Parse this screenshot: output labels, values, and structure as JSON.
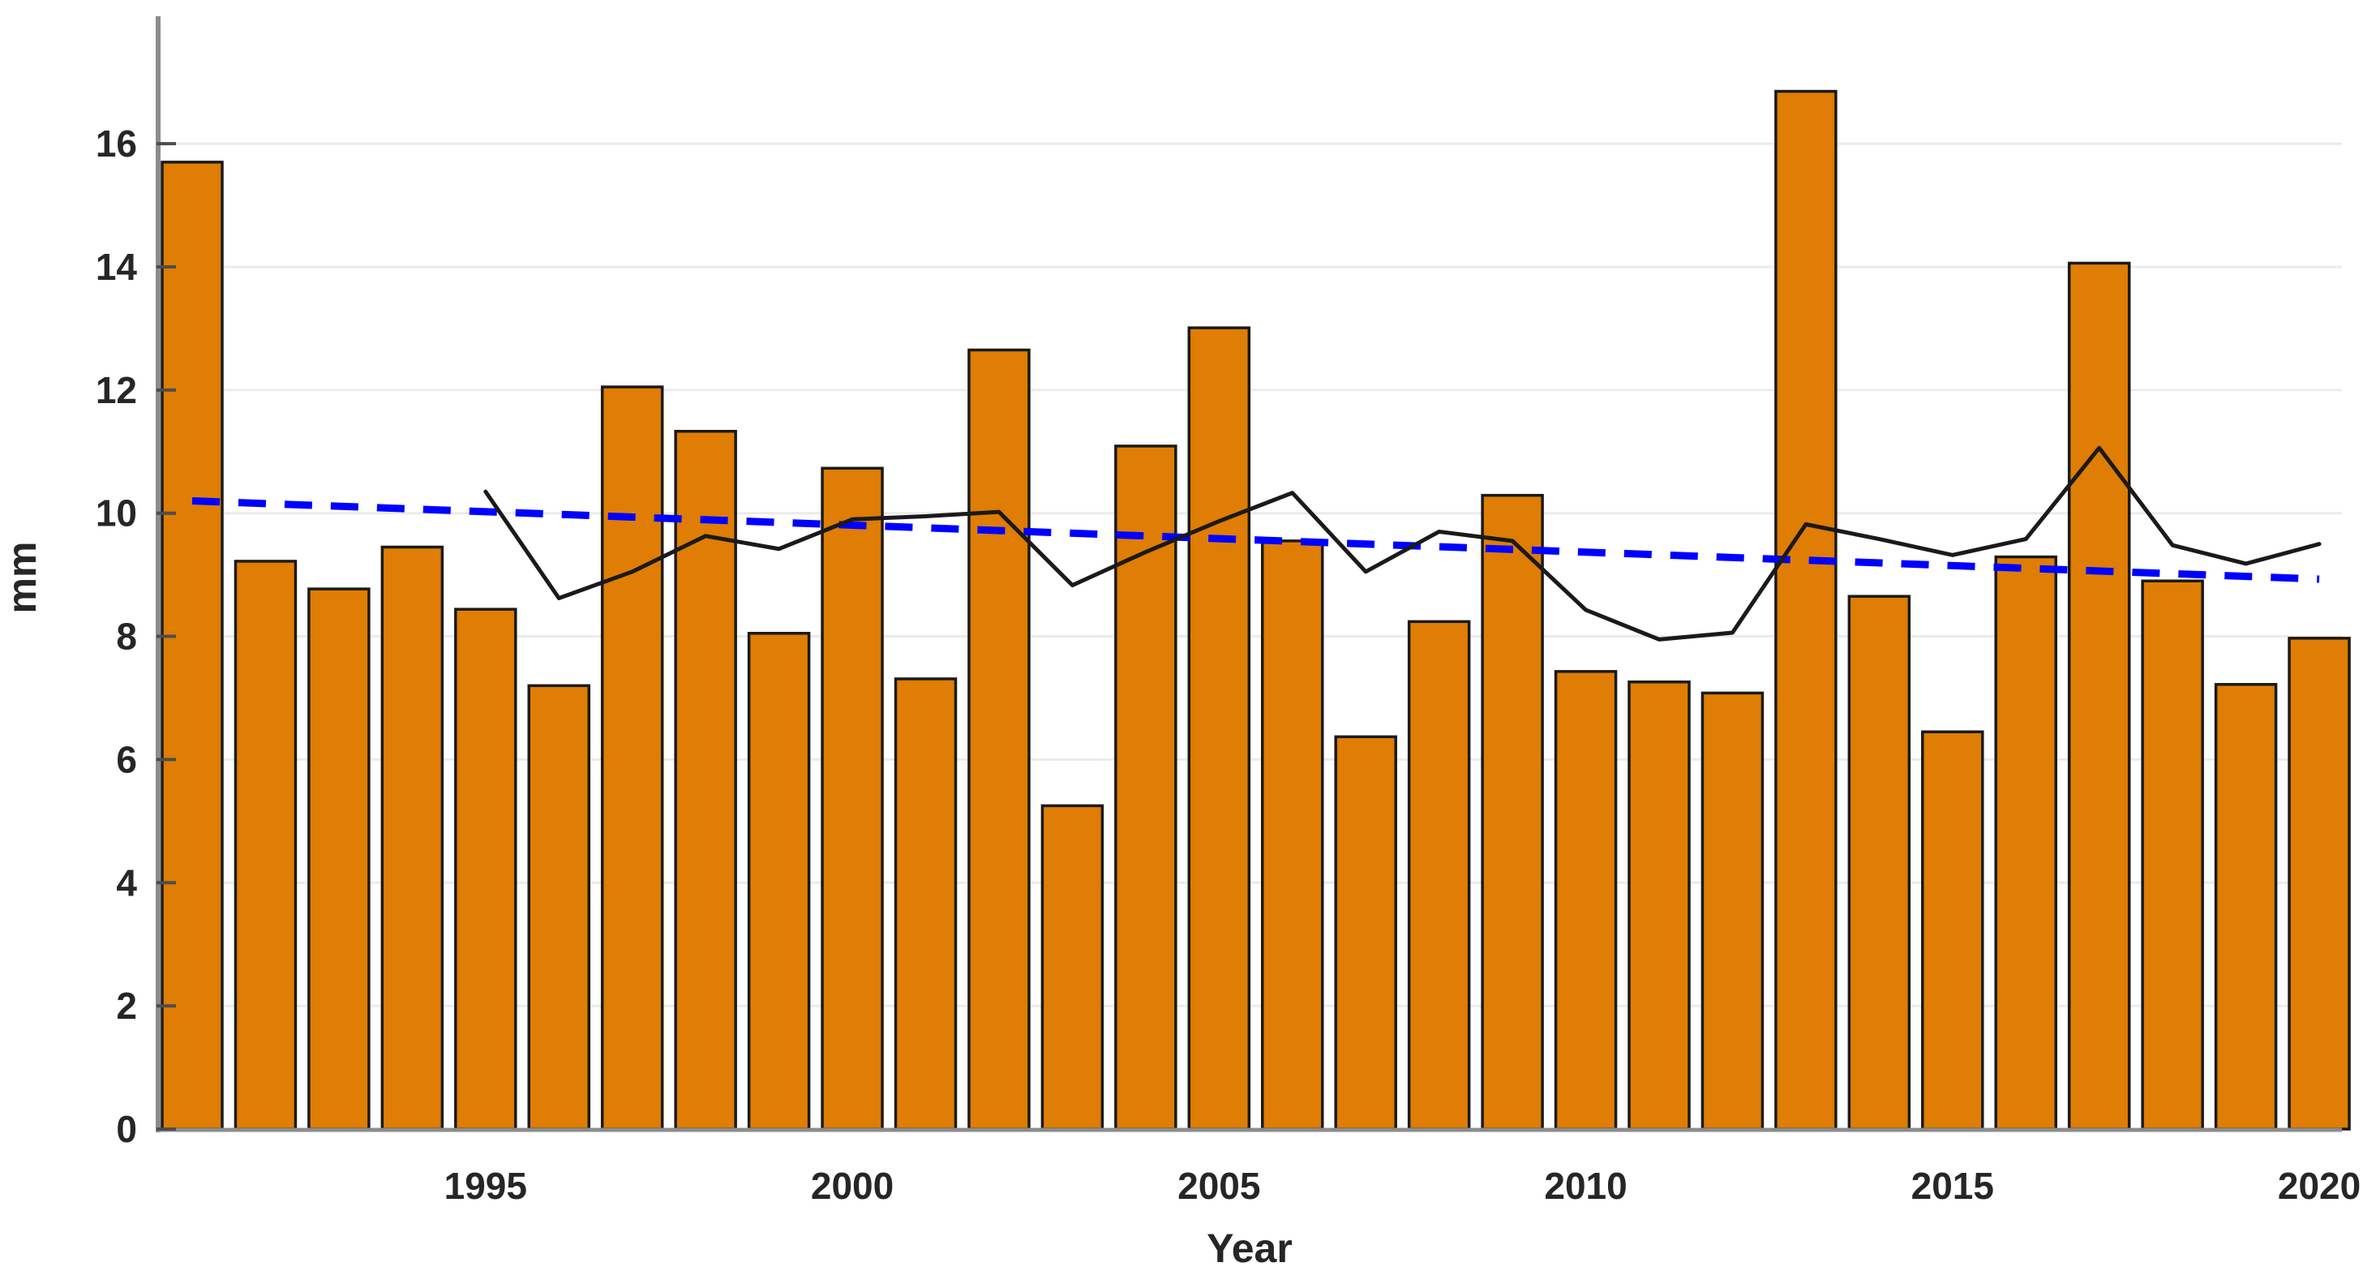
{
  "chart_data": {
    "type": "bar",
    "title": "",
    "xlabel": "Year",
    "ylabel": "mm",
    "ylim": [
      0,
      18
    ],
    "yticks": [
      0,
      2,
      4,
      6,
      8,
      10,
      12,
      14,
      16
    ],
    "xticks": [
      1995,
      2000,
      2005,
      2010,
      2015,
      2020
    ],
    "grid": "horizontal",
    "legend": "none",
    "categories": [
      1991,
      1992,
      1993,
      1994,
      1995,
      1996,
      1997,
      1998,
      1999,
      2000,
      2001,
      2002,
      2003,
      2004,
      2005,
      2006,
      2007,
      2008,
      2009,
      2010,
      2011,
      2012,
      2013,
      2014,
      2015,
      2016,
      2017,
      2018,
      2019,
      2020
    ],
    "series": [
      {
        "name": "annual-bars",
        "type": "bar",
        "values": [
          15.7,
          9.22,
          8.77,
          9.45,
          8.44,
          7.2,
          12.05,
          11.33,
          8.05,
          10.73,
          7.31,
          12.65,
          5.25,
          11.09,
          13.01,
          9.55,
          6.37,
          8.24,
          10.29,
          7.43,
          7.26,
          7.08,
          16.85,
          8.65,
          6.45,
          9.29,
          14.06,
          8.9,
          7.22,
          7.97
        ]
      },
      {
        "name": "smoothed-line",
        "type": "line",
        "x_start": 1995,
        "values": [
          10.35,
          8.62,
          9.05,
          9.63,
          9.42,
          9.9,
          9.95,
          10.02,
          8.83,
          9.37,
          9.87,
          10.33,
          9.05,
          9.7,
          9.55,
          8.43,
          7.95,
          8.06,
          9.82,
          9.58,
          9.32,
          9.58,
          11.06,
          9.48,
          9.18,
          9.5
        ]
      },
      {
        "name": "trend-line",
        "type": "dashed-line",
        "points": [
          [
            1991,
            10.2
          ],
          [
            2020,
            8.93
          ]
        ]
      }
    ]
  },
  "colors": {
    "bar_fill": "#df7d04",
    "bar_edge": "#1a1a1a",
    "smoothed_line": "#1a1a1a",
    "trend_line": "#0000ff",
    "grid": "#ebebeb",
    "axis": "#8c8c8c",
    "tick": "#4d4d4d",
    "text": "#262626",
    "background": "#ffffff"
  }
}
